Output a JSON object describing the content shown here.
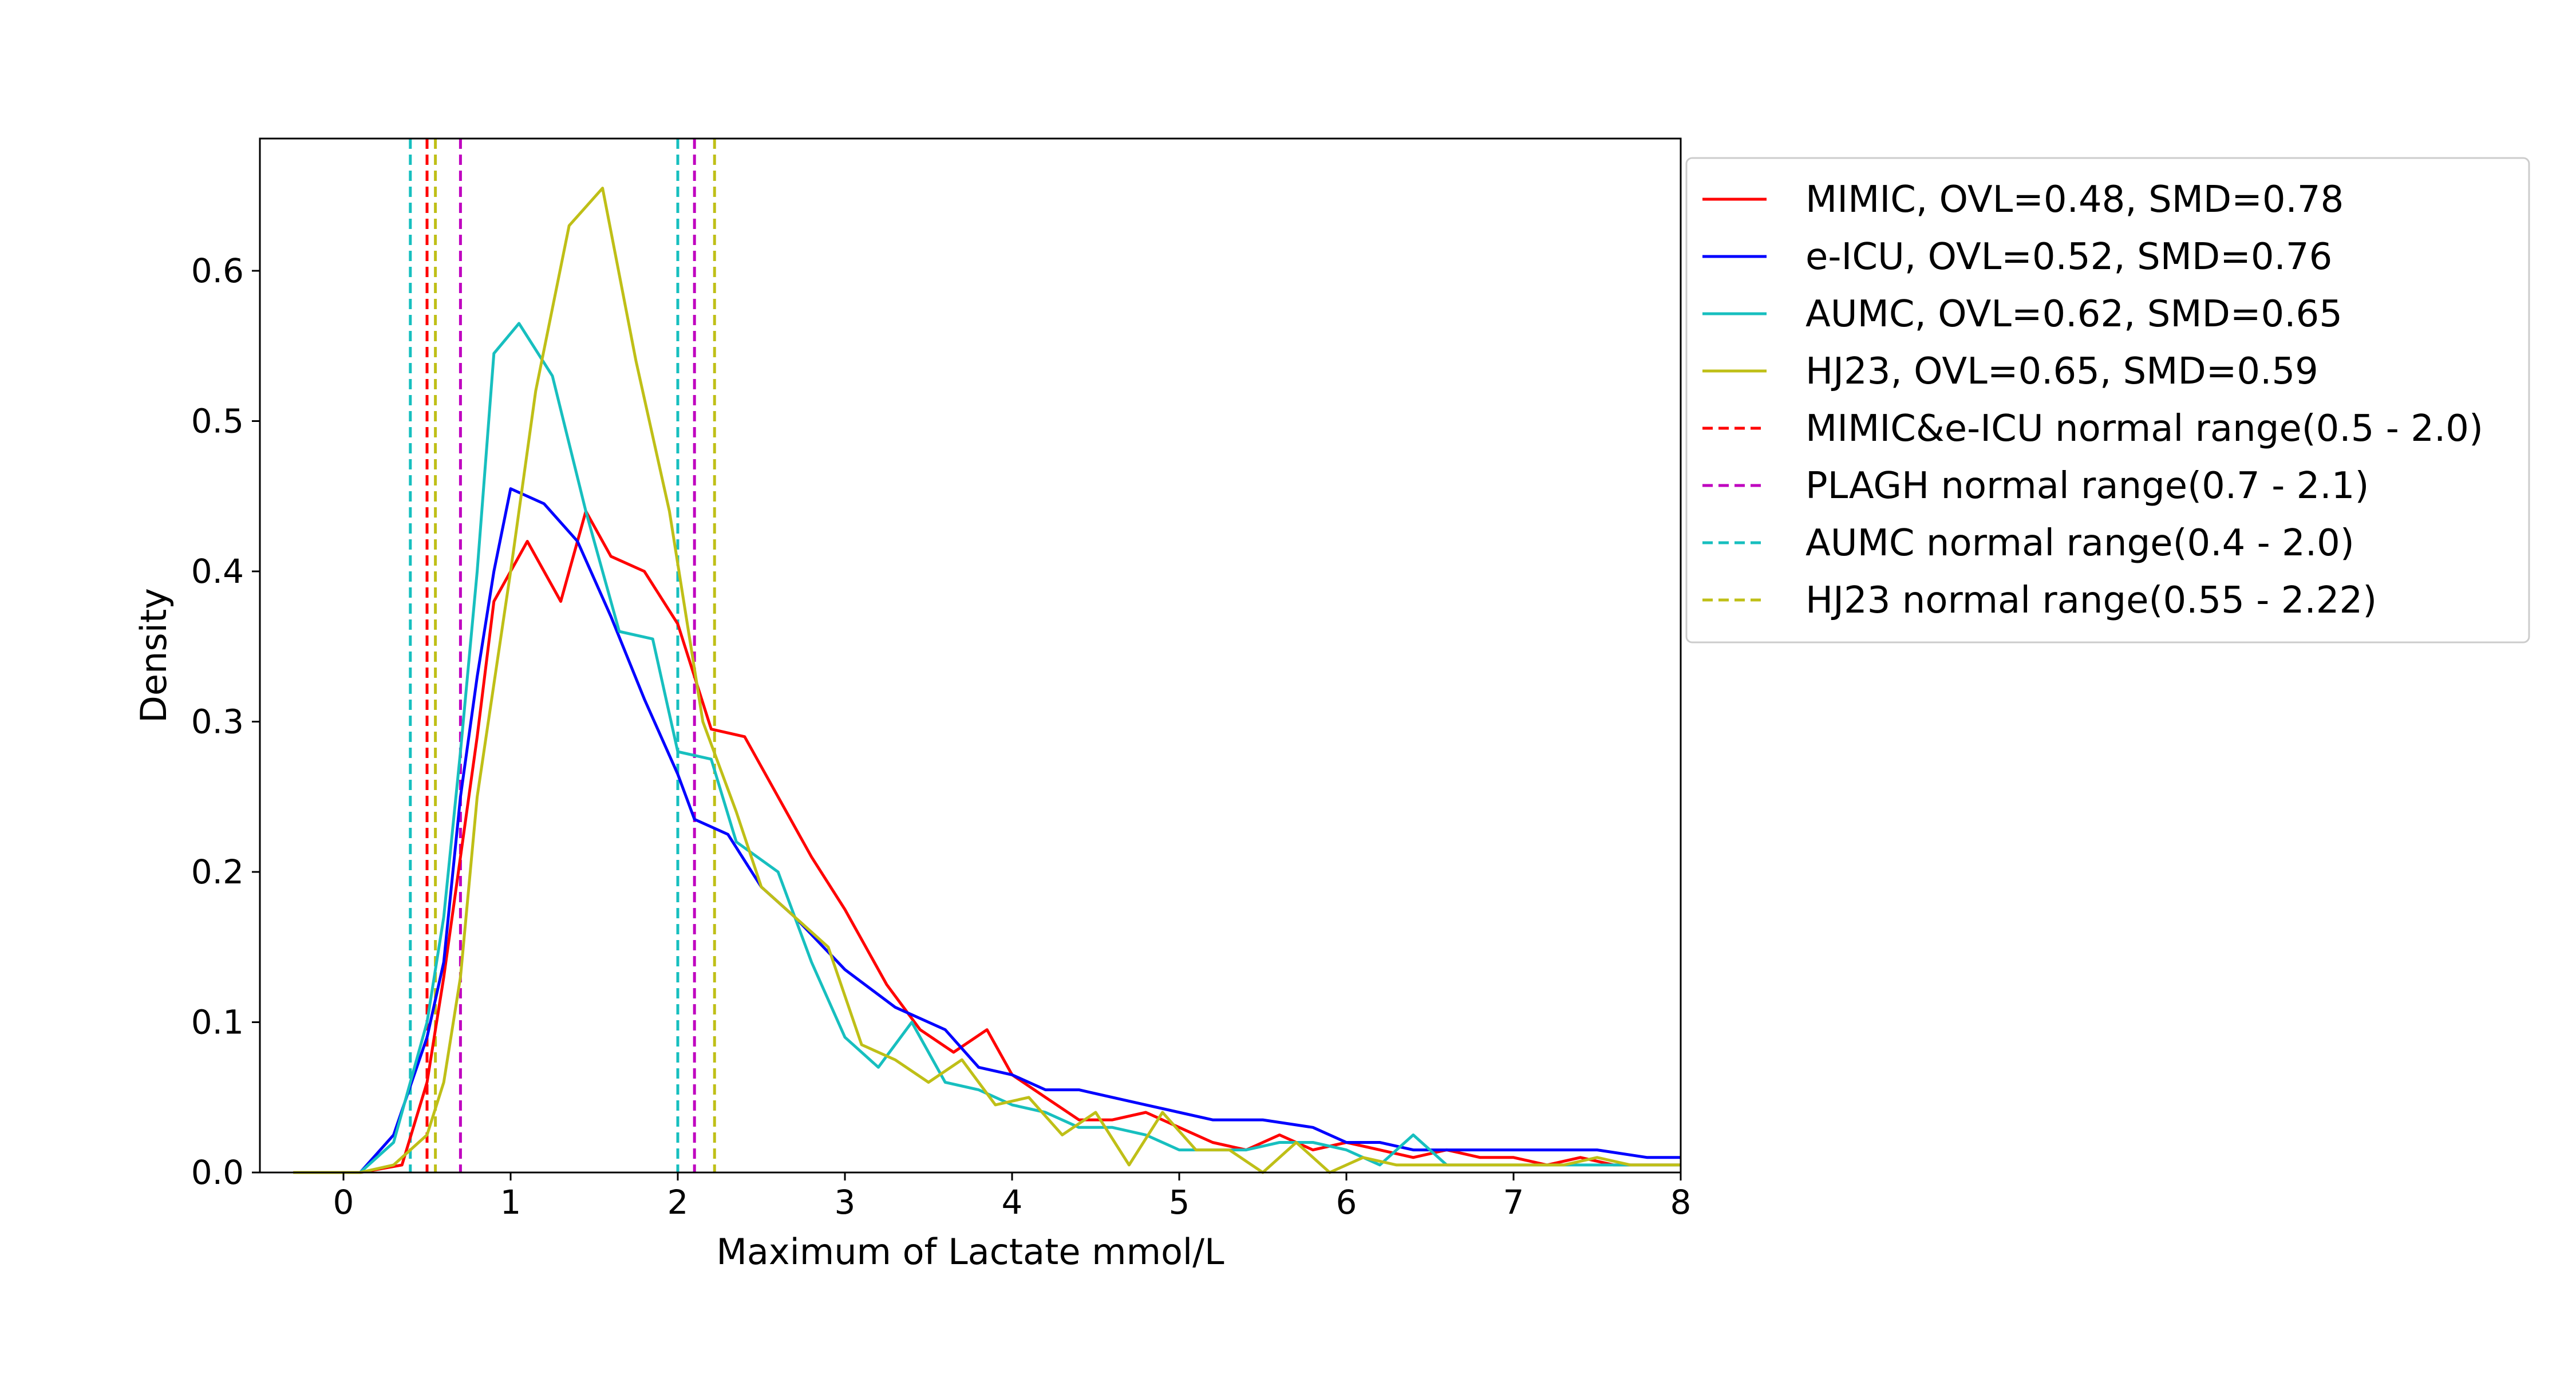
{
  "chart_data": {
    "type": "line",
    "title": "",
    "xlabel": "Maximum of Lactate mmol/L",
    "ylabel": "Density",
    "xlim": [
      -0.5,
      8
    ],
    "ylim": [
      0,
      0.688
    ],
    "xticks": [
      "0",
      "1",
      "2",
      "3",
      "4",
      "5",
      "6",
      "7",
      "8"
    ],
    "yticks": [
      "0.0",
      "0.1",
      "0.2",
      "0.3",
      "0.4",
      "0.5",
      "0.6"
    ],
    "grid": false,
    "legend_position": "outside-top-right",
    "series": [
      {
        "name": "MIMIC, OVL=0.48, SMD=0.78",
        "color": "#ff0000",
        "style": "solid",
        "x": [
          -0.3,
          -0.1,
          0.1,
          0.35,
          0.5,
          0.6,
          0.7,
          0.8,
          0.9,
          1.1,
          1.3,
          1.45,
          1.6,
          1.8,
          2.0,
          2.2,
          2.4,
          2.6,
          2.8,
          3.0,
          3.25,
          3.45,
          3.65,
          3.85,
          4.0,
          4.2,
          4.4,
          4.6,
          4.8,
          5.0,
          5.2,
          5.4,
          5.6,
          5.8,
          6.0,
          6.2,
          6.4,
          6.6,
          6.8,
          7.0,
          7.2,
          7.4,
          7.6,
          7.8,
          8.0
        ],
        "y": [
          0.0,
          0.0,
          0.0,
          0.005,
          0.06,
          0.13,
          0.21,
          0.29,
          0.38,
          0.42,
          0.38,
          0.44,
          0.41,
          0.4,
          0.365,
          0.295,
          0.29,
          0.25,
          0.21,
          0.175,
          0.125,
          0.095,
          0.08,
          0.095,
          0.065,
          0.05,
          0.035,
          0.035,
          0.04,
          0.03,
          0.02,
          0.015,
          0.025,
          0.015,
          0.02,
          0.015,
          0.01,
          0.015,
          0.01,
          0.01,
          0.005,
          0.01,
          0.005,
          0.005,
          0.005
        ]
      },
      {
        "name": "e-ICU, OVL=0.52, SMD=0.76",
        "color": "#0000ff",
        "style": "solid",
        "x": [
          -0.3,
          -0.1,
          0.1,
          0.3,
          0.5,
          0.6,
          0.7,
          0.8,
          0.9,
          1.0,
          1.2,
          1.4,
          1.6,
          1.8,
          2.0,
          2.1,
          2.3,
          2.5,
          2.7,
          3.0,
          3.3,
          3.6,
          3.8,
          4.0,
          4.2,
          4.4,
          4.6,
          4.8,
          5.0,
          5.2,
          5.5,
          5.8,
          6.0,
          6.2,
          6.4,
          6.6,
          6.8,
          7.0,
          7.2,
          7.5,
          7.8,
          8.0
        ],
        "y": [
          0.0,
          0.0,
          0.0,
          0.025,
          0.09,
          0.14,
          0.25,
          0.33,
          0.4,
          0.455,
          0.445,
          0.42,
          0.37,
          0.315,
          0.265,
          0.235,
          0.225,
          0.19,
          0.17,
          0.135,
          0.11,
          0.095,
          0.07,
          0.065,
          0.055,
          0.055,
          0.05,
          0.045,
          0.04,
          0.035,
          0.035,
          0.03,
          0.02,
          0.02,
          0.015,
          0.015,
          0.015,
          0.015,
          0.015,
          0.015,
          0.01,
          0.01
        ]
      },
      {
        "name": "AUMC, OVL=0.62, SMD=0.65",
        "color": "#17bfbf",
        "style": "solid",
        "x": [
          -0.3,
          -0.1,
          0.1,
          0.3,
          0.5,
          0.6,
          0.7,
          0.8,
          0.9,
          1.05,
          1.25,
          1.45,
          1.65,
          1.85,
          2.0,
          2.2,
          2.35,
          2.6,
          2.8,
          3.0,
          3.2,
          3.4,
          3.6,
          3.8,
          4.0,
          4.2,
          4.4,
          4.6,
          4.8,
          5.0,
          5.2,
          5.4,
          5.6,
          5.8,
          6.0,
          6.2,
          6.4,
          6.6,
          6.8,
          7.0,
          7.2,
          7.4,
          7.6,
          7.8,
          8.0
        ],
        "y": [
          0.0,
          0.0,
          0.0,
          0.02,
          0.1,
          0.17,
          0.28,
          0.4,
          0.545,
          0.565,
          0.53,
          0.44,
          0.36,
          0.355,
          0.28,
          0.275,
          0.22,
          0.2,
          0.14,
          0.09,
          0.07,
          0.1,
          0.06,
          0.055,
          0.045,
          0.04,
          0.03,
          0.03,
          0.025,
          0.015,
          0.015,
          0.015,
          0.02,
          0.02,
          0.015,
          0.005,
          0.025,
          0.005,
          0.005,
          0.005,
          0.005,
          0.005,
          0.005,
          0.005,
          0.005
        ]
      },
      {
        "name": "HJ23, OVL=0.65, SMD=0.59",
        "color": "#bfbf17",
        "style": "solid",
        "x": [
          -0.3,
          -0.1,
          0.1,
          0.3,
          0.5,
          0.6,
          0.7,
          0.8,
          1.0,
          1.15,
          1.35,
          1.55,
          1.75,
          1.95,
          2.15,
          2.35,
          2.5,
          2.7,
          2.9,
          3.1,
          3.3,
          3.5,
          3.7,
          3.9,
          4.1,
          4.3,
          4.5,
          4.7,
          4.9,
          5.1,
          5.3,
          5.5,
          5.7,
          5.9,
          6.1,
          6.3,
          6.5,
          6.7,
          6.9,
          7.1,
          7.3,
          7.5,
          7.7,
          8.0
        ],
        "y": [
          0.0,
          0.0,
          0.0,
          0.005,
          0.025,
          0.06,
          0.13,
          0.25,
          0.4,
          0.52,
          0.63,
          0.655,
          0.54,
          0.44,
          0.3,
          0.24,
          0.19,
          0.17,
          0.15,
          0.085,
          0.075,
          0.06,
          0.075,
          0.045,
          0.05,
          0.025,
          0.04,
          0.005,
          0.04,
          0.015,
          0.015,
          0.0,
          0.02,
          0.0,
          0.01,
          0.005,
          0.005,
          0.005,
          0.005,
          0.005,
          0.005,
          0.01,
          0.005,
          0.005
        ]
      }
    ],
    "reference_lines": [
      {
        "name": "MIMIC&e-ICU normal range(0.5 - 2.0)",
        "color": "#ff0000",
        "style": "dashed",
        "x": [
          0.5,
          2.0
        ]
      },
      {
        "name": "PLAGH normal range(0.7 - 2.1)",
        "color": "#bf00bf",
        "style": "dashed",
        "x": [
          0.7,
          2.1
        ]
      },
      {
        "name": "AUMC normal range(0.4 - 2.0)",
        "color": "#17bfbf",
        "style": "dashed",
        "x": [
          0.4,
          2.0
        ]
      },
      {
        "name": "HJ23 normal range(0.55 - 2.22)",
        "color": "#bfbf17",
        "style": "dashed",
        "x": [
          0.55,
          2.22
        ]
      }
    ]
  }
}
